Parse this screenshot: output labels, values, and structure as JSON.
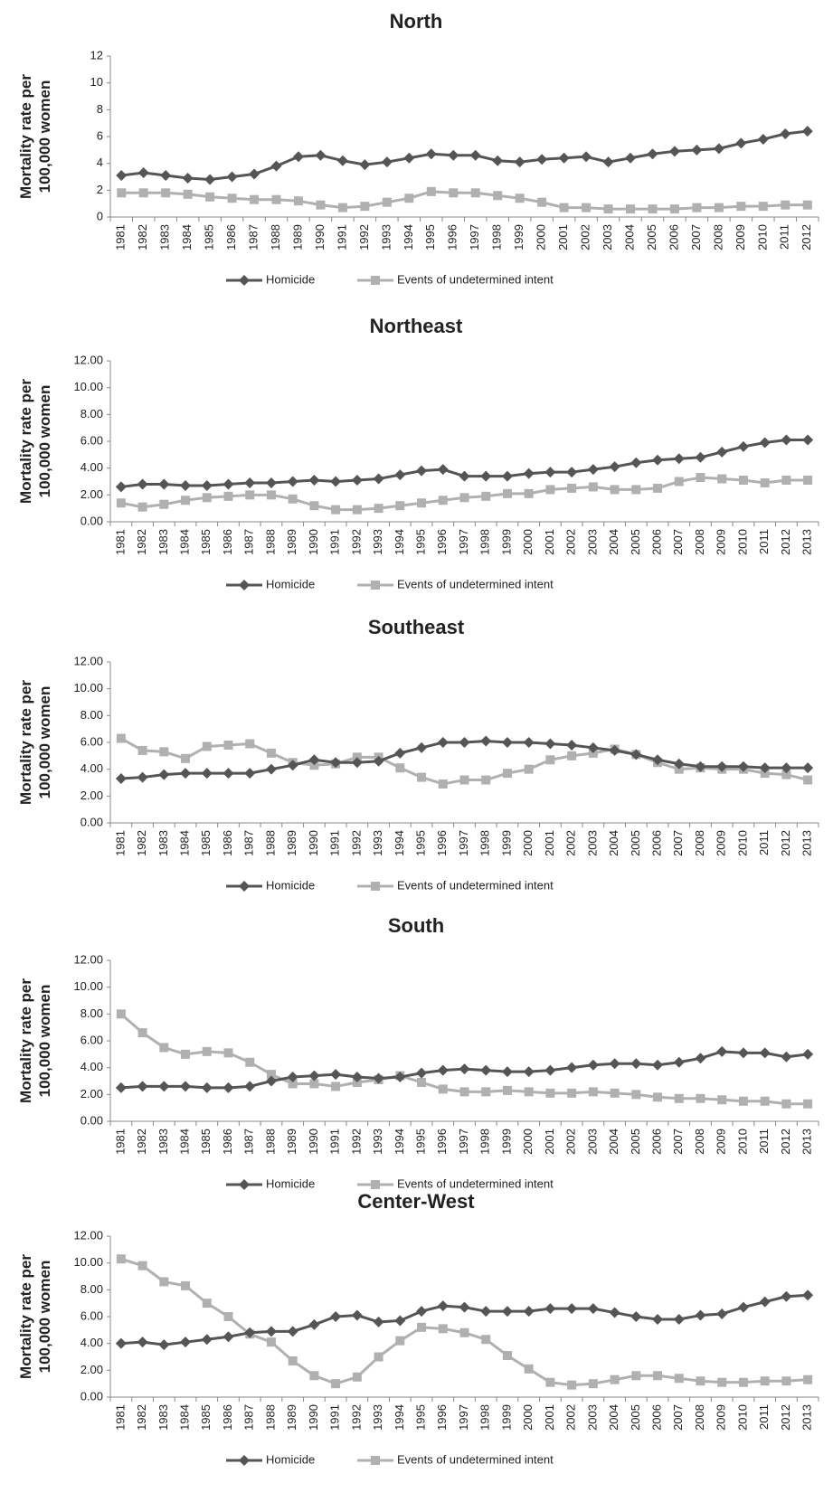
{
  "chart_data": [
    {
      "type": "line",
      "title": "North",
      "y_label": "Mortality rate per 100,000 women",
      "categories": [
        "1981",
        "1982",
        "1983",
        "1984",
        "1985",
        "1986",
        "1987",
        "1988",
        "1989",
        "1990",
        "1991",
        "1992",
        "1993",
        "1994",
        "1995",
        "1996",
        "1997",
        "1998",
        "1999",
        "2000",
        "2001",
        "2002",
        "2003",
        "2004",
        "2005",
        "2006",
        "2007",
        "2008",
        "2009",
        "2010",
        "2011",
        "2012"
      ],
      "series": [
        {
          "name": "Homicide",
          "color": "#555555",
          "marker": "diamond",
          "values": [
            3.1,
            3.3,
            3.1,
            2.9,
            2.8,
            3.0,
            3.2,
            3.8,
            4.5,
            4.6,
            4.2,
            3.9,
            4.1,
            4.4,
            4.7,
            4.6,
            4.6,
            4.2,
            4.1,
            4.3,
            4.4,
            4.5,
            4.1,
            4.4,
            4.7,
            4.9,
            5.0,
            5.1,
            5.5,
            5.8,
            6.2,
            6.4
          ]
        },
        {
          "name": "Events of undetermined intent",
          "color": "#b0b0b0",
          "marker": "square",
          "values": [
            1.8,
            1.8,
            1.8,
            1.7,
            1.5,
            1.4,
            1.3,
            1.3,
            1.2,
            0.9,
            0.7,
            0.8,
            1.1,
            1.4,
            1.9,
            1.8,
            1.8,
            1.6,
            1.4,
            1.1,
            0.7,
            0.7,
            0.6,
            0.6,
            0.6,
            0.6,
            0.7,
            0.7,
            0.8,
            0.8,
            0.9,
            0.9
          ]
        }
      ],
      "ylim": [
        0,
        12
      ],
      "yticks": [
        0,
        2,
        4,
        6,
        8,
        10,
        12
      ],
      "legend": "bottom"
    },
    {
      "type": "line",
      "title": "Northeast",
      "y_label": "Mortality rate per 100,000 women",
      "categories": [
        "1981",
        "1982",
        "1983",
        "1984",
        "1985",
        "1986",
        "1987",
        "1988",
        "1989",
        "1990",
        "1991",
        "1992",
        "1993",
        "1994",
        "1995",
        "1996",
        "1997",
        "1998",
        "1999",
        "2000",
        "2001",
        "2002",
        "2003",
        "2004",
        "2005",
        "2006",
        "2007",
        "2008",
        "2009",
        "2010",
        "2011",
        "2012",
        "2013"
      ],
      "series": [
        {
          "name": "Homicide",
          "color": "#555555",
          "marker": "diamond",
          "values": [
            2.6,
            2.8,
            2.8,
            2.7,
            2.7,
            2.8,
            2.9,
            2.9,
            3.0,
            3.1,
            3.0,
            3.1,
            3.2,
            3.5,
            3.8,
            3.9,
            3.4,
            3.4,
            3.4,
            3.6,
            3.7,
            3.7,
            3.9,
            4.1,
            4.4,
            4.6,
            4.7,
            4.8,
            5.2,
            5.6,
            5.9,
            6.1,
            6.1
          ]
        },
        {
          "name": "Events of undetermined intent",
          "color": "#b0b0b0",
          "marker": "square",
          "values": [
            1.4,
            1.1,
            1.3,
            1.6,
            1.8,
            1.9,
            2.0,
            2.0,
            1.7,
            1.2,
            0.9,
            0.9,
            1.0,
            1.2,
            1.4,
            1.6,
            1.8,
            1.9,
            2.1,
            2.1,
            2.4,
            2.5,
            2.6,
            2.4,
            2.4,
            2.5,
            3.0,
            3.3,
            3.2,
            3.1,
            2.9,
            3.1,
            3.1
          ]
        }
      ],
      "ylim": [
        0,
        12
      ],
      "yticks": [
        {
          "value": 0,
          "label": "0.00"
        },
        {
          "value": 2,
          "label": "2.00"
        },
        {
          "value": 4,
          "label": "4.00"
        },
        {
          "value": 6,
          "label": "6.00"
        },
        {
          "value": 8,
          "label": "8.00"
        },
        {
          "value": 10,
          "label": "10.00"
        },
        {
          "value": 12,
          "label": "12.00"
        }
      ],
      "legend": "bottom"
    },
    {
      "type": "line",
      "title": "Southeast",
      "y_label": "Mortality rate per 100,000 women",
      "categories": [
        "1981",
        "1982",
        "1983",
        "1984",
        "1985",
        "1986",
        "1987",
        "1988",
        "1989",
        "1990",
        "1991",
        "1992",
        "1993",
        "1994",
        "1995",
        "1996",
        "1997",
        "1998",
        "1999",
        "2000",
        "2001",
        "2002",
        "2003",
        "2004",
        "2005",
        "2006",
        "2007",
        "2008",
        "2009",
        "2010",
        "2011",
        "2012",
        "2013"
      ],
      "series": [
        {
          "name": "Homicide",
          "color": "#555555",
          "marker": "diamond",
          "values": [
            3.3,
            3.4,
            3.6,
            3.7,
            3.7,
            3.7,
            3.7,
            4.0,
            4.3,
            4.7,
            4.5,
            4.5,
            4.6,
            5.2,
            5.6,
            6.0,
            6.0,
            6.1,
            6.0,
            6.0,
            5.9,
            5.8,
            5.6,
            5.4,
            5.1,
            4.7,
            4.4,
            4.2,
            4.2,
            4.2,
            4.1,
            4.1,
            4.1
          ]
        },
        {
          "name": "Events of undetermined intent",
          "color": "#b0b0b0",
          "marker": "square",
          "values": [
            6.3,
            5.4,
            5.3,
            4.8,
            5.7,
            5.8,
            5.9,
            5.2,
            4.5,
            4.3,
            4.4,
            4.9,
            4.9,
            4.1,
            3.4,
            2.9,
            3.2,
            3.2,
            3.7,
            4.0,
            4.7,
            5.0,
            5.2,
            5.5,
            5.1,
            4.5,
            4.0,
            4.1,
            4.0,
            4.0,
            3.7,
            3.6,
            3.2
          ]
        }
      ],
      "ylim": [
        0,
        12
      ],
      "yticks": [
        {
          "value": 0,
          "label": "0.00"
        },
        {
          "value": 2,
          "label": "2.00"
        },
        {
          "value": 4,
          "label": "4.00"
        },
        {
          "value": 6,
          "label": "6.00"
        },
        {
          "value": 8,
          "label": "8.00"
        },
        {
          "value": 10,
          "label": "10.00"
        },
        {
          "value": 12,
          "label": "12.00"
        }
      ],
      "legend": "bottom"
    },
    {
      "type": "line",
      "title": "South",
      "y_label": "Mortality rate per 100,000 women",
      "categories": [
        "1981",
        "1982",
        "1983",
        "1984",
        "1985",
        "1986",
        "1987",
        "1988",
        "1989",
        "1990",
        "1991",
        "1992",
        "1993",
        "1994",
        "1995",
        "1996",
        "1997",
        "1998",
        "1999",
        "2000",
        "2001",
        "2002",
        "2003",
        "2004",
        "2005",
        "2006",
        "2007",
        "2008",
        "2009",
        "2010",
        "2011",
        "2012",
        "2013"
      ],
      "series": [
        {
          "name": "Homicide",
          "color": "#555555",
          "marker": "diamond",
          "values": [
            2.5,
            2.6,
            2.6,
            2.6,
            2.5,
            2.5,
            2.6,
            3.0,
            3.3,
            3.4,
            3.5,
            3.3,
            3.2,
            3.3,
            3.6,
            3.8,
            3.9,
            3.8,
            3.7,
            3.7,
            3.8,
            4.0,
            4.2,
            4.3,
            4.3,
            4.2,
            4.4,
            4.7,
            5.2,
            5.1,
            5.1,
            4.8,
            5.0
          ]
        },
        {
          "name": "Events of undetermined intent",
          "color": "#b0b0b0",
          "marker": "square",
          "values": [
            8.0,
            6.6,
            5.5,
            5.0,
            5.2,
            5.1,
            4.4,
            3.5,
            2.8,
            2.8,
            2.6,
            2.9,
            3.1,
            3.4,
            2.9,
            2.4,
            2.2,
            2.2,
            2.3,
            2.2,
            2.1,
            2.1,
            2.2,
            2.1,
            2.0,
            1.8,
            1.7,
            1.7,
            1.6,
            1.5,
            1.5,
            1.3,
            1.3
          ]
        }
      ],
      "ylim": [
        0,
        12
      ],
      "yticks": [
        {
          "value": 0,
          "label": "0.00"
        },
        {
          "value": 2,
          "label": "2.00"
        },
        {
          "value": 4,
          "label": "4.00"
        },
        {
          "value": 6,
          "label": "6.00"
        },
        {
          "value": 8,
          "label": "8.00"
        },
        {
          "value": 10,
          "label": "10.00"
        },
        {
          "value": 12,
          "label": "12.00"
        }
      ],
      "legend": "bottom"
    },
    {
      "type": "line",
      "title": "Center-West",
      "y_label": "Mortality rate per 100,000 women",
      "categories": [
        "1981",
        "1982",
        "1983",
        "1984",
        "1985",
        "1986",
        "1987",
        "1988",
        "1989",
        "1990",
        "1991",
        "1992",
        "1993",
        "1994",
        "1995",
        "1996",
        "1997",
        "1998",
        "1999",
        "2000",
        "2001",
        "2002",
        "2003",
        "2004",
        "2005",
        "2006",
        "2007",
        "2008",
        "2009",
        "2010",
        "2011",
        "2012",
        "2013"
      ],
      "series": [
        {
          "name": "Homicide",
          "color": "#555555",
          "marker": "diamond",
          "values": [
            4.0,
            4.1,
            3.9,
            4.1,
            4.3,
            4.5,
            4.8,
            4.9,
            4.9,
            5.4,
            6.0,
            6.1,
            5.6,
            5.7,
            6.4,
            6.8,
            6.7,
            6.4,
            6.4,
            6.4,
            6.6,
            6.6,
            6.6,
            6.3,
            6.0,
            5.8,
            5.8,
            6.1,
            6.2,
            6.7,
            7.1,
            7.5,
            7.6
          ]
        },
        {
          "name": "Events of undetermined intent",
          "color": "#b0b0b0",
          "marker": "square",
          "values": [
            10.3,
            9.8,
            8.6,
            8.3,
            7.0,
            6.0,
            4.7,
            4.1,
            2.7,
            1.6,
            1.0,
            1.5,
            3.0,
            4.2,
            5.2,
            5.1,
            4.8,
            4.3,
            3.1,
            2.1,
            1.1,
            0.9,
            1.0,
            1.3,
            1.6,
            1.6,
            1.4,
            1.2,
            1.1,
            1.1,
            1.2,
            1.2,
            1.3
          ]
        }
      ],
      "ylim": [
        0,
        12
      ],
      "yticks": [
        {
          "value": 0,
          "label": "0.00"
        },
        {
          "value": 2,
          "label": "2.00"
        },
        {
          "value": 4,
          "label": "4.00"
        },
        {
          "value": 6,
          "label": "6.00"
        },
        {
          "value": 8,
          "label": "8.00"
        },
        {
          "value": 10,
          "label": "10.00"
        },
        {
          "value": 12,
          "label": "12.00"
        }
      ],
      "legend": "bottom"
    }
  ]
}
